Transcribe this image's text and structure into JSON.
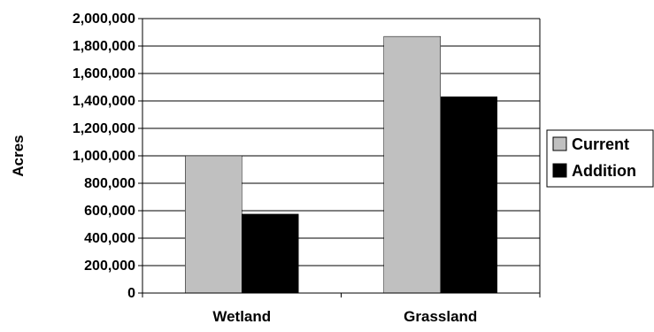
{
  "chart_data": {
    "type": "bar",
    "categories": [
      "Wetland",
      "Grassland"
    ],
    "series": [
      {
        "name": "Current",
        "values": [
          1000000,
          1870000
        ],
        "color": "#c0c0c0"
      },
      {
        "name": "Addition",
        "values": [
          575000,
          1430000
        ],
        "color": "#000000"
      }
    ],
    "title": "",
    "xlabel": "",
    "ylabel": "Acres",
    "ylim": [
      0,
      2000000
    ],
    "yticks": [
      0,
      200000,
      400000,
      600000,
      800000,
      1000000,
      1200000,
      1400000,
      1600000,
      1800000,
      2000000
    ],
    "ytick_labels": [
      "0",
      "200,000",
      "400,000",
      "600,000",
      "800,000",
      "1,000,000",
      "1,200,000",
      "1,400,000",
      "1,600,000",
      "1,800,000",
      "2,000,000"
    ],
    "grid": true,
    "legend_position": "right"
  }
}
